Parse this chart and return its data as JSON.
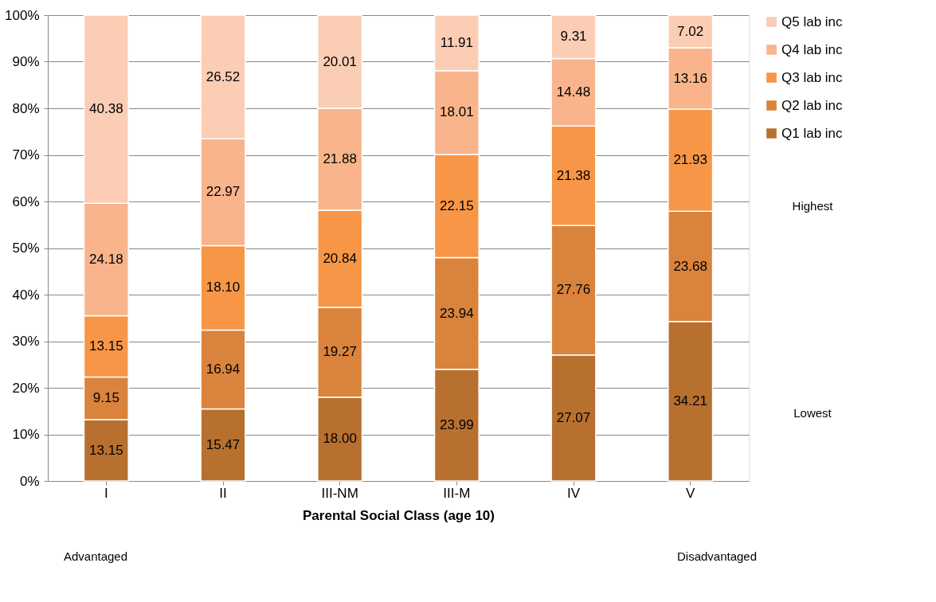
{
  "chart_data": {
    "type": "bar",
    "stacked": true,
    "xlabel": "Parental Social Class (age 10)",
    "categories": [
      "I",
      "II",
      "III-NM",
      "III-M",
      "IV",
      "V"
    ],
    "series": [
      {
        "name": "Q1 lab inc",
        "color": "#b8702f",
        "values": [
          13.15,
          15.47,
          18.0,
          23.99,
          27.07,
          34.21
        ],
        "value_labels": [
          "13.15",
          "15.47",
          "18.00",
          "23.99",
          "27.07",
          "34.21"
        ]
      },
      {
        "name": "Q2 lab inc",
        "color": "#d9833c",
        "values": [
          9.15,
          16.94,
          19.27,
          23.94,
          27.76,
          23.68
        ],
        "value_labels": [
          "9.15",
          "16.94",
          "19.27",
          "23.94",
          "27.76",
          "23.68"
        ]
      },
      {
        "name": "Q3 lab inc",
        "color": "#f79646",
        "values": [
          13.15,
          18.1,
          20.84,
          22.15,
          21.38,
          21.93
        ],
        "value_labels": [
          "13.15",
          "18.10",
          "20.84",
          "22.15",
          "21.38",
          "21.93"
        ]
      },
      {
        "name": "Q4 lab inc",
        "color": "#f9b48b",
        "values": [
          24.18,
          22.97,
          21.88,
          18.01,
          14.48,
          13.16
        ],
        "value_labels": [
          "24.18",
          "22.97",
          "21.88",
          "18.01",
          "14.48",
          "13.16"
        ]
      },
      {
        "name": "Q5 lab inc",
        "color": "#fbcdb4",
        "values": [
          40.38,
          26.52,
          20.01,
          11.91,
          9.31,
          7.02
        ],
        "value_labels": [
          "40.38",
          "26.52",
          "20.01",
          "11.91",
          "9.31",
          "7.02"
        ]
      }
    ],
    "ylim": [
      0,
      100
    ],
    "yticks": [
      {
        "value": 0,
        "label": "0%"
      },
      {
        "value": 10,
        "label": "10%"
      },
      {
        "value": 20,
        "label": "20%"
      },
      {
        "value": 30,
        "label": "30%"
      },
      {
        "value": 40,
        "label": "40%"
      },
      {
        "value": 50,
        "label": "50%"
      },
      {
        "value": 60,
        "label": "60%"
      },
      {
        "value": 70,
        "label": "70%"
      },
      {
        "value": 80,
        "label": "80%"
      },
      {
        "value": 90,
        "label": "90%"
      },
      {
        "value": 100,
        "label": "100%"
      }
    ],
    "grid": "y",
    "legend": "right",
    "annotations": [
      "Highest",
      "Lowest",
      "Advantaged",
      "Disadvantaged"
    ]
  }
}
